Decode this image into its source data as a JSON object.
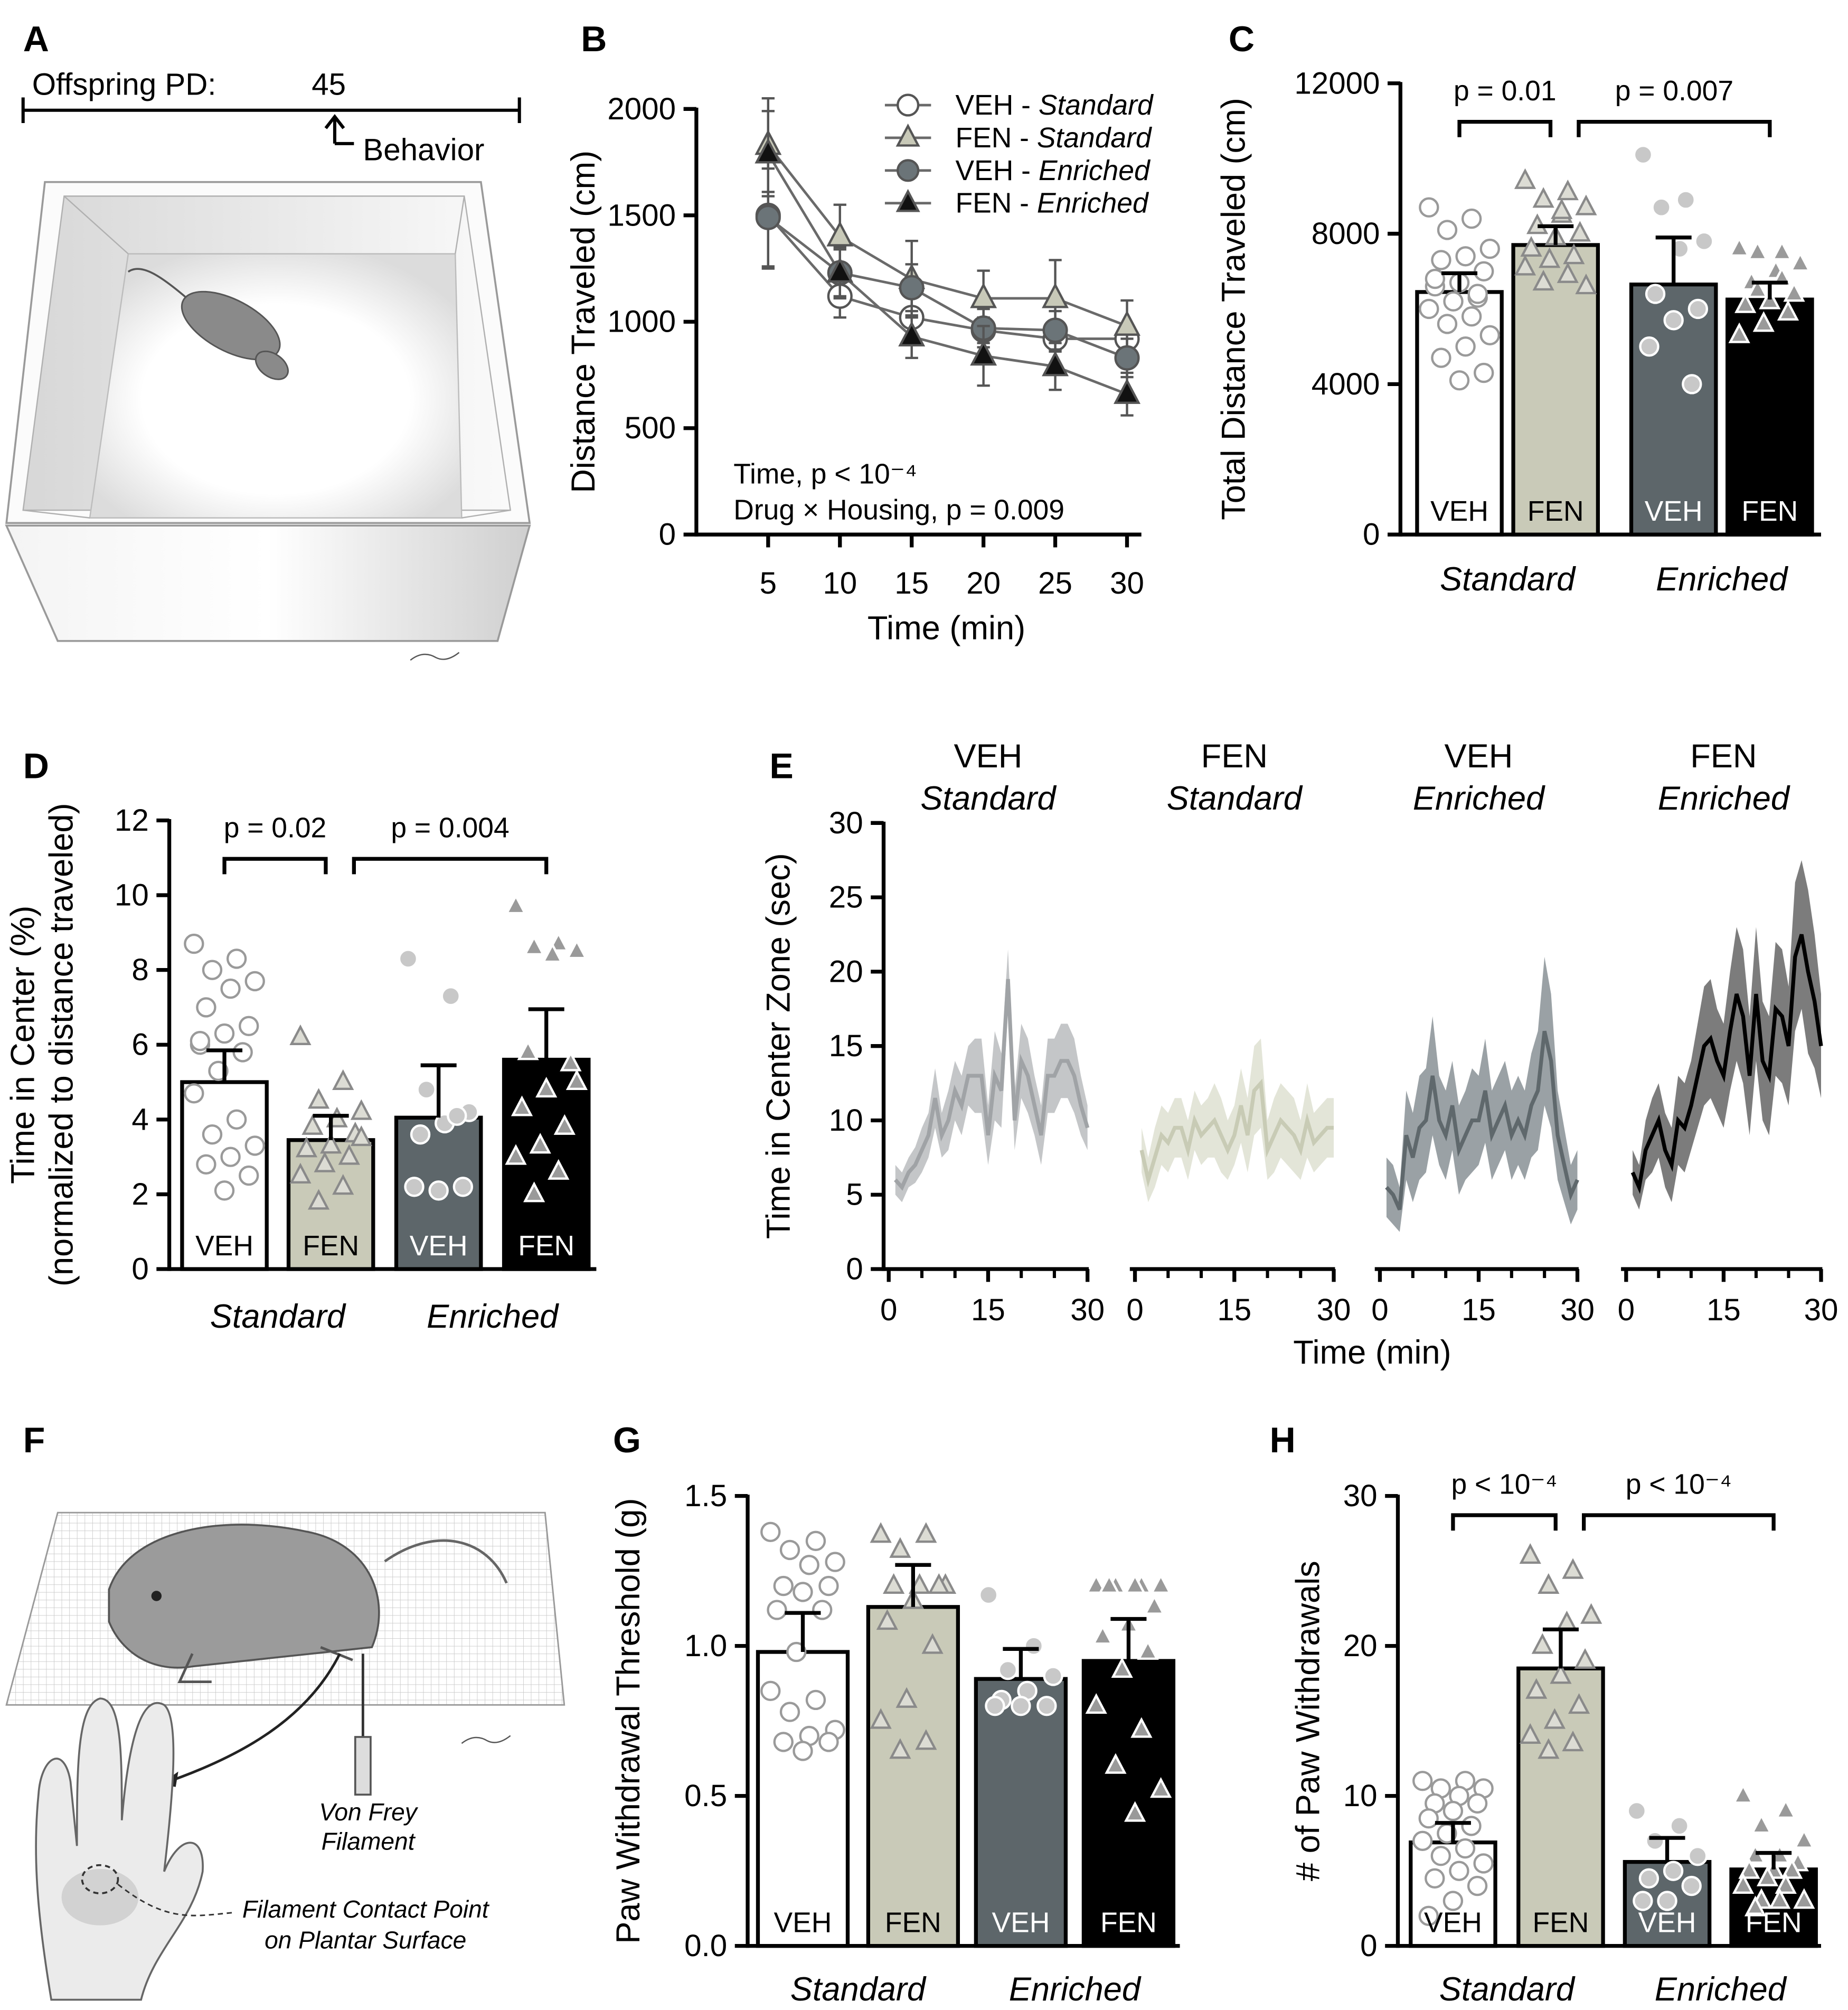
{
  "illustrations": {
    "A": {
      "panel": "A",
      "timeline_label": "Offspring PD:",
      "day": "45",
      "event": "Behavior"
    },
    "F": {
      "panel": "F",
      "filament": [
        "Von Frey",
        "Filament"
      ],
      "contact": [
        "Filament Contact Point",
        "on Plantar Surface"
      ]
    }
  },
  "chart_data": [
    {
      "type": "line",
      "panel": "B",
      "ylabel": "Distance Traveled (cm)",
      "xlabel": "Time (min)",
      "x": [
        5,
        10,
        15,
        20,
        25,
        30
      ],
      "xlim": [
        0,
        31
      ],
      "xticks": [
        5,
        10,
        15,
        20,
        25,
        30
      ],
      "ylim": [
        0,
        2000
      ],
      "yticks": [
        0,
        500,
        1000,
        1500,
        2000
      ],
      "annotations": [
        "Time, p < 10⁻⁴",
        "Drug × Housing, p = 0.009"
      ],
      "series": [
        {
          "name": "VEH - Standard",
          "marker": "circle",
          "color": "#ffffff",
          "values": [
            1500,
            1120,
            1020,
            960,
            920,
            920
          ],
          "errors": [
            250,
            100,
            100,
            60,
            60,
            60
          ]
        },
        {
          "name": "FEN - Standard",
          "marker": "triangle",
          "color": "#c8c9b8",
          "values": [
            1830,
            1400,
            1200,
            1110,
            1110,
            980
          ],
          "errors": [
            220,
            150,
            180,
            130,
            180,
            120
          ]
        },
        {
          "name": "VEH - Enriched",
          "marker": "circle",
          "color": "#6b7478",
          "values": [
            1490,
            1230,
            1160,
            970,
            960,
            830
          ],
          "errors": [
            230,
            110,
            110,
            90,
            90,
            90
          ]
        },
        {
          "name": "FEN - Enriched",
          "marker": "triangle",
          "color": "#111111",
          "values": [
            1790,
            1230,
            930,
            840,
            790,
            660
          ],
          "errors": [
            200,
            120,
            100,
            140,
            110,
            100
          ]
        }
      ]
    },
    {
      "type": "bar",
      "panel": "C",
      "ylabel": "Total Distance Traveled (cm)",
      "categories": [
        "VEH",
        "FEN",
        "VEH",
        "FEN"
      ],
      "groups": [
        "Standard",
        "Enriched"
      ],
      "colors": [
        "#ffffff",
        "#c9cab8",
        "#5d666a",
        "#000000"
      ],
      "markers": [
        "circle",
        "triangle",
        "circle",
        "triangle"
      ],
      "values": [
        6450,
        7700,
        6650,
        6250
      ],
      "errors": [
        500,
        500,
        1250,
        450
      ],
      "ylim": [
        0,
        12000
      ],
      "yticks": [
        0,
        4000,
        8000,
        12000
      ],
      "comparisons": [
        "p = 0.01",
        "p = 0.007"
      ],
      "points": [
        [
          8700,
          8400,
          8100,
          7600,
          7400,
          7300,
          7000,
          6700,
          6600,
          6300,
          6200,
          6000,
          5800,
          5600,
          5300,
          5000,
          4700,
          4300,
          4100,
          6800,
          6400
        ],
        [
          9400,
          9100,
          8900,
          8700,
          8500,
          8200,
          8000,
          7900,
          7600,
          7400,
          7300,
          7100,
          6900,
          6700,
          6600,
          8600
        ],
        [
          10100,
          8900,
          8700,
          7800,
          7600,
          6400,
          6000,
          5700,
          5000,
          4000
        ],
        [
          7600,
          7500,
          7500,
          7200,
          7000,
          6700,
          6400,
          6200,
          6100,
          5900,
          5600,
          5300,
          6800,
          6500
        ]
      ]
    },
    {
      "type": "bar",
      "panel": "D",
      "ylabel": [
        "Time in Center (%)",
        "(normalized to distance traveled)"
      ],
      "categories": [
        "VEH",
        "FEN",
        "VEH",
        "FEN"
      ],
      "groups": [
        "Standard",
        "Enriched"
      ],
      "colors": [
        "#ffffff",
        "#c9cab8",
        "#5d666a",
        "#000000"
      ],
      "markers": [
        "circle",
        "triangle",
        "circle",
        "triangle"
      ],
      "values": [
        5.0,
        3.45,
        4.05,
        5.6
      ],
      "errors": [
        0.85,
        0.65,
        1.4,
        1.35
      ],
      "ylim": [
        0,
        12
      ],
      "yticks": [
        0,
        2,
        4,
        6,
        8,
        10,
        12
      ],
      "comparisons": [
        "p = 0.02",
        "p = 0.004"
      ],
      "points": [
        [
          8.7,
          8.3,
          8.0,
          7.7,
          7.5,
          7.0,
          6.5,
          6.3,
          6.0,
          5.8,
          5.3,
          4.7,
          4.0,
          3.6,
          3.3,
          3.0,
          2.8,
          2.5,
          2.1,
          6.1
        ],
        [
          6.2,
          5.0,
          4.5,
          4.2,
          4.0,
          3.8,
          3.6,
          3.3,
          3.2,
          3.0,
          2.8,
          2.5,
          2.2,
          1.8,
          3.5
        ],
        [
          8.3,
          7.3,
          4.8,
          4.2,
          3.9,
          3.6,
          2.2,
          2.1,
          2.2,
          4.1
        ],
        [
          9.7,
          8.7,
          8.6,
          8.5,
          8.4,
          5.8,
          5.5,
          4.8,
          4.3,
          3.8,
          3.3,
          3.0,
          2.6,
          2.0,
          5.0
        ]
      ]
    },
    {
      "type": "small-multiples",
      "panel": "E",
      "ylabel": "Time in Center Zone (sec)",
      "xlabel": "Time (min)",
      "x": [
        1,
        2,
        3,
        4,
        5,
        6,
        7,
        8,
        9,
        10,
        11,
        12,
        13,
        14,
        15,
        16,
        17,
        18,
        19,
        20,
        21,
        22,
        23,
        24,
        25,
        26,
        27,
        28,
        29,
        30
      ],
      "xlim": [
        0,
        30
      ],
      "xticks": [
        0,
        15,
        30
      ],
      "xminorticks": [
        5,
        10,
        20,
        25
      ],
      "ylim": [
        0,
        30
      ],
      "yticks": [
        0,
        5,
        10,
        15,
        20,
        25,
        30
      ],
      "series": [
        {
          "name": "VEH",
          "housing": "Standard",
          "color": "#a0a3a6",
          "band_color": "#c4c6c8",
          "values": [
            6,
            5.5,
            6.5,
            7,
            8,
            9,
            11.5,
            9,
            10,
            12,
            11,
            13,
            13,
            13,
            9,
            13,
            12,
            19.5,
            10,
            14,
            13,
            11,
            9,
            13,
            13,
            14,
            14,
            13,
            11,
            9.5
          ],
          "errors": [
            1,
            1,
            1,
            1.2,
            1.5,
            1.5,
            2,
            1.5,
            2,
            2,
            2,
            2,
            2.5,
            2.5,
            2,
            3,
            2.5,
            2,
            2,
            2.5,
            2.5,
            2,
            2,
            2.5,
            2.5,
            2.5,
            2.5,
            2.5,
            2,
            1.5
          ]
        },
        {
          "name": "FEN",
          "housing": "Standard",
          "color": "#c8cbb5",
          "band_color": "#e3e5d8",
          "values": [
            8,
            6,
            7.5,
            9,
            8.5,
            9.5,
            9.5,
            8,
            10,
            9,
            9.5,
            10,
            9,
            8,
            9,
            11,
            9,
            12,
            12.5,
            8,
            9,
            10,
            9.5,
            9,
            8,
            10,
            8.5,
            9,
            9.5,
            9.5
          ],
          "errors": [
            1.5,
            1.5,
            2,
            2,
            2,
            2,
            2,
            2,
            2,
            2,
            2,
            2.5,
            2.5,
            2,
            2,
            2.5,
            2.5,
            3,
            3,
            2,
            2.5,
            2.5,
            2.5,
            2.5,
            2,
            2.5,
            2,
            2,
            2,
            2
          ]
        },
        {
          "name": "VEH",
          "housing": "Enriched",
          "color": "#5f686c",
          "band_color": "#9aa1a5",
          "values": [
            5.5,
            5,
            4,
            9,
            7.5,
            9.5,
            10,
            13,
            10,
            9,
            11,
            8,
            9,
            10,
            10,
            12,
            9,
            10,
            11,
            9,
            10,
            9,
            11,
            12,
            16,
            14,
            9,
            7,
            5,
            6
          ],
          "errors": [
            2,
            2,
            1.5,
            3,
            3,
            3.5,
            3.5,
            4,
            3,
            3,
            3,
            3,
            3,
            3.5,
            3,
            3.5,
            3,
            3,
            3,
            3,
            3,
            3,
            3.5,
            4,
            5,
            4.5,
            3,
            2.5,
            2,
            2
          ]
        },
        {
          "name": "FEN",
          "housing": "Enriched",
          "color": "#000000",
          "band_color": "#7c7c7c",
          "values": [
            6.5,
            5.5,
            8,
            9,
            10,
            8,
            7,
            10,
            9.5,
            11,
            13,
            15,
            15.5,
            14,
            13,
            16,
            18.5,
            17,
            13,
            18.5,
            14,
            13,
            17.5,
            17,
            15,
            21,
            22.5,
            20,
            18,
            15
          ],
          "errors": [
            1.5,
            1.5,
            2,
            2.5,
            2.5,
            2.5,
            2.5,
            3,
            3,
            3,
            3.5,
            4,
            4,
            3.5,
            3.5,
            4,
            4.5,
            4.5,
            4,
            4.5,
            4,
            4,
            4.5,
            4.5,
            4,
            5,
            5,
            5.5,
            4.5,
            3.5
          ]
        }
      ]
    },
    {
      "type": "bar",
      "panel": "G",
      "ylabel": "Paw Withdrawal Threshold (g)",
      "categories": [
        "VEH",
        "FEN",
        "VEH",
        "FEN"
      ],
      "groups": [
        "Standard",
        "Enriched"
      ],
      "colors": [
        "#ffffff",
        "#c9cab8",
        "#5d666a",
        "#000000"
      ],
      "markers": [
        "circle",
        "triangle",
        "circle",
        "triangle"
      ],
      "values": [
        0.98,
        1.13,
        0.89,
        0.95
      ],
      "errors": [
        0.13,
        0.14,
        0.1,
        0.14
      ],
      "ylim": [
        0,
        1.5
      ],
      "yticks": [
        {
          "value": 0,
          "label": "0.0"
        },
        0.5,
        {
          "value": 1,
          "label": "1.0"
        },
        1.5
      ],
      "comparisons": [],
      "points": [
        [
          1.38,
          1.35,
          1.32,
          1.28,
          1.27,
          1.2,
          1.2,
          1.18,
          1.12,
          1.12,
          0.98,
          0.85,
          0.82,
          0.78,
          0.72,
          0.7,
          0.68,
          0.68,
          0.65
        ],
        [
          1.37,
          1.37,
          1.32,
          1.2,
          1.2,
          1.2,
          1.2,
          1.15,
          1.08,
          1.0,
          0.82,
          0.75,
          0.68,
          0.65
        ],
        [
          1.17,
          1.0,
          0.92,
          0.9,
          0.85,
          0.82,
          0.8,
          0.8,
          0.8
        ],
        [
          1.2,
          1.2,
          1.2,
          1.2,
          1.2,
          1.2,
          1.13,
          1.07,
          1.03,
          0.98,
          0.92,
          0.8,
          0.72,
          0.6,
          0.52,
          0.44
        ]
      ]
    },
    {
      "type": "bar",
      "panel": "H",
      "ylabel": "# of Paw Withdrawals",
      "categories": [
        "VEH",
        "FEN",
        "VEH",
        "FEN"
      ],
      "groups": [
        "Standard",
        "Enriched"
      ],
      "colors": [
        "#ffffff",
        "#c9cab8",
        "#5d666a",
        "#000000"
      ],
      "markers": [
        "circle",
        "triangle",
        "circle",
        "triangle"
      ],
      "values": [
        6.9,
        18.5,
        5.6,
        5.1
      ],
      "errors": [
        1.3,
        2.6,
        1.6,
        1.1
      ],
      "ylim": [
        0,
        30
      ],
      "yticks": [
        0,
        10,
        20,
        30
      ],
      "comparisons": [
        "p < 10⁻⁴",
        "p < 10⁻⁴"
      ],
      "points": [
        [
          11,
          11,
          10.5,
          10.5,
          10,
          9.5,
          9.5,
          9,
          8.5,
          8,
          7.5,
          7,
          6.5,
          6,
          5.5,
          5,
          4.5,
          4,
          3,
          2
        ],
        [
          26,
          25,
          24,
          22,
          21.5,
          20,
          19,
          18,
          17,
          16,
          15,
          14,
          13.5,
          13
        ],
        [
          9,
          8,
          7,
          6,
          5,
          4.5,
          4,
          3,
          3
        ],
        [
          10,
          9,
          8,
          7,
          6,
          6,
          5.5,
          5,
          5,
          5,
          4.5,
          4,
          4,
          3,
          3,
          3,
          2.5
        ]
      ]
    }
  ]
}
